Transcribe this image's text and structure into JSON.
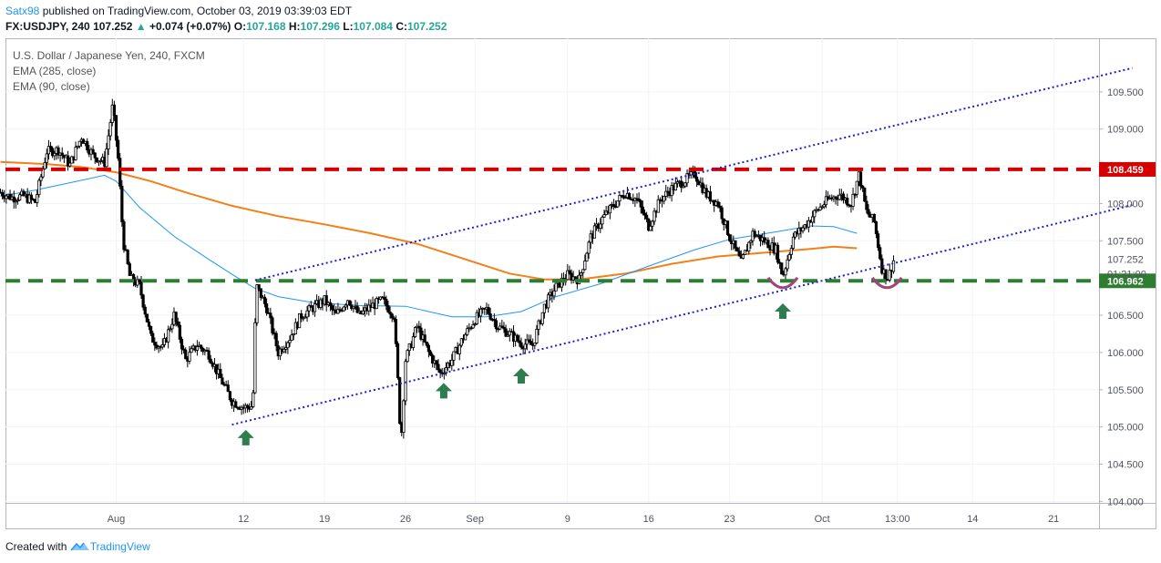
{
  "header": {
    "user": "Satx98",
    "published": "published on TradingView.com, October 03, 2019 03:39:03 EDT",
    "symbol": "FX:USDJPY, 240",
    "last": "107.252",
    "arrow": "▲",
    "change": "+0.074 (+0.07%)",
    "o_label": "O:",
    "o_value": "107.168",
    "h_label": "H:",
    "h_value": "107.296",
    "l_label": "L:",
    "l_value": "107.084",
    "c_label": "C:",
    "c_value": "107.252"
  },
  "legend": {
    "title": "U.S. Dollar / Japanese Yen, 240, FXCM",
    "ema1": "EMA (285, close)",
    "ema2": "EMA (90, close)"
  },
  "footer": {
    "created": "Created with",
    "brand": "TradingView"
  },
  "colors": {
    "resistance": "#d50000",
    "support": "#2e7d32",
    "channel": "#1c21c9",
    "ema285": "#f57f17",
    "ema90": "#2196f3",
    "arrow": "#2e7d4f",
    "smile": "#a0457a",
    "candle": "#000000"
  },
  "chart_data": {
    "type": "candlestick",
    "symbol": "USDJPY",
    "interval": "240",
    "ylim": [
      103.98,
      110.22
    ],
    "y_ticks": [
      "104.000",
      "104.500",
      "105.000",
      "105.500",
      "106.000",
      "106.500",
      "107.000",
      "107.500",
      "108.000",
      "108.500",
      "109.000",
      "109.500"
    ],
    "x_ticks": [
      {
        "label": "Aug",
        "t": 0
      },
      {
        "label": "12",
        "t": 11
      },
      {
        "label": "19",
        "t": 18
      },
      {
        "label": "26",
        "t": 25
      },
      {
        "label": "Sep",
        "t": 31
      },
      {
        "label": "9",
        "t": 39
      },
      {
        "label": "16",
        "t": 46
      },
      {
        "label": "23",
        "t": 53
      },
      {
        "label": "Oct",
        "t": 61
      },
      {
        "label": "13:00",
        "t": 67.5
      },
      {
        "label": "14",
        "t": 74
      },
      {
        "label": "21",
        "t": 81
      }
    ],
    "x_range_days": [
      -10,
      87.8
    ],
    "price_tags": {
      "resistance": "108.459",
      "last": "107.252",
      "countdown": "01:21:00",
      "support": "106.962"
    },
    "levels": {
      "resistance": 108.459,
      "support": 106.962
    },
    "channel_lower": [
      [
        10,
        105.03
      ],
      [
        87.8,
        107.98
      ]
    ],
    "channel_upper": [
      [
        12,
        106.97
      ],
      [
        87.8,
        109.82
      ]
    ],
    "arrows": [
      [
        11.2,
        104.85
      ],
      [
        28.3,
        105.48
      ],
      [
        35,
        105.68
      ],
      [
        57.6,
        106.55
      ]
    ],
    "smiles": [
      [
        57.6,
        106.98
      ],
      [
        66.6,
        106.98
      ]
    ],
    "ema285": [
      [
        -10,
        108.56
      ],
      [
        -6,
        108.53
      ],
      [
        -3,
        108.49
      ],
      [
        0,
        108.42
      ],
      [
        3,
        108.3
      ],
      [
        6,
        108.15
      ],
      [
        10,
        107.97
      ],
      [
        14,
        107.83
      ],
      [
        18,
        107.72
      ],
      [
        22,
        107.6
      ],
      [
        26,
        107.46
      ],
      [
        30,
        107.26
      ],
      [
        34,
        107.06
      ],
      [
        37,
        106.98
      ],
      [
        40,
        106.98
      ],
      [
        44,
        107.06
      ],
      [
        48,
        107.19
      ],
      [
        52,
        107.29
      ],
      [
        56,
        107.34
      ],
      [
        60,
        107.39
      ],
      [
        62,
        107.42
      ],
      [
        64,
        107.4
      ]
    ],
    "ema90": [
      [
        -10,
        108.1
      ],
      [
        -7,
        108.18
      ],
      [
        -4,
        108.28
      ],
      [
        -1,
        108.38
      ],
      [
        0,
        108.3
      ],
      [
        2,
        107.95
      ],
      [
        5,
        107.56
      ],
      [
        8,
        107.25
      ],
      [
        10,
        107.05
      ],
      [
        12,
        106.86
      ],
      [
        14,
        106.75
      ],
      [
        17,
        106.67
      ],
      [
        21,
        106.63
      ],
      [
        25,
        106.62
      ],
      [
        27,
        106.55
      ],
      [
        29,
        106.48
      ],
      [
        32,
        106.48
      ],
      [
        35,
        106.55
      ],
      [
        38,
        106.75
      ],
      [
        42,
        106.93
      ],
      [
        46,
        107.16
      ],
      [
        50,
        107.38
      ],
      [
        53,
        107.52
      ],
      [
        57,
        107.62
      ],
      [
        60,
        107.7
      ],
      [
        62,
        107.69
      ],
      [
        64,
        107.6
      ]
    ],
    "price_path": [
      [
        -10,
        108.15
      ],
      [
        -9,
        108.08
      ],
      [
        -8,
        108.1
      ],
      [
        -7,
        108.02
      ],
      [
        -6,
        108.7
      ],
      [
        -5,
        108.72
      ],
      [
        -4,
        108.52
      ],
      [
        -3,
        108.9
      ],
      [
        -2,
        108.65
      ],
      [
        -1,
        108.55
      ],
      [
        -0.3,
        109.32
      ],
      [
        0.2,
        108.55
      ],
      [
        0.6,
        107.5
      ],
      [
        1.2,
        107.0
      ],
      [
        2,
        106.9
      ],
      [
        3,
        106.2
      ],
      [
        4,
        106.05
      ],
      [
        5,
        106.5
      ],
      [
        6,
        105.9
      ],
      [
        7,
        106.1
      ],
      [
        8,
        105.98
      ],
      [
        9,
        105.65
      ],
      [
        10,
        105.35
      ],
      [
        11,
        105.26
      ],
      [
        11.8,
        105.28
      ],
      [
        12.1,
        106.9
      ],
      [
        13,
        106.6
      ],
      [
        14,
        106.0
      ],
      [
        15,
        106.2
      ],
      [
        16,
        106.5
      ],
      [
        17,
        106.6
      ],
      [
        18,
        106.7
      ],
      [
        19,
        106.5
      ],
      [
        20,
        106.72
      ],
      [
        21,
        106.5
      ],
      [
        22,
        106.62
      ],
      [
        23,
        106.7
      ],
      [
        24,
        106.5
      ],
      [
        24.4,
        105.45
      ],
      [
        24.6,
        104.75
      ],
      [
        25,
        105.9
      ],
      [
        26,
        106.35
      ],
      [
        27,
        106.0
      ],
      [
        28,
        105.72
      ],
      [
        29,
        105.9
      ],
      [
        30,
        106.2
      ],
      [
        31,
        106.45
      ],
      [
        32,
        106.58
      ],
      [
        33,
        106.35
      ],
      [
        34,
        106.25
      ],
      [
        35,
        106.12
      ],
      [
        36,
        106.1
      ],
      [
        37,
        106.62
      ],
      [
        38,
        106.88
      ],
      [
        39,
        107.04
      ],
      [
        40,
        106.98
      ],
      [
        41,
        107.55
      ],
      [
        42,
        107.8
      ],
      [
        43,
        107.98
      ],
      [
        44,
        108.15
      ],
      [
        45,
        108.05
      ],
      [
        46,
        107.7
      ],
      [
        47,
        108.05
      ],
      [
        48,
        108.2
      ],
      [
        49,
        108.3
      ],
      [
        50,
        108.4
      ],
      [
        51,
        108.12
      ],
      [
        52,
        108.0
      ],
      [
        53,
        107.55
      ],
      [
        54,
        107.2
      ],
      [
        55,
        107.6
      ],
      [
        56,
        107.5
      ],
      [
        57,
        107.38
      ],
      [
        57.6,
        107.02
      ],
      [
        58.5,
        107.55
      ],
      [
        59.5,
        107.7
      ],
      [
        60.5,
        107.9
      ],
      [
        61.5,
        108.05
      ],
      [
        62.5,
        108.12
      ],
      [
        63.5,
        108.0
      ],
      [
        64.2,
        108.4
      ],
      [
        64.8,
        107.9
      ],
      [
        65.5,
        107.75
      ],
      [
        66.2,
        107.1
      ],
      [
        66.7,
        107.0
      ],
      [
        67.2,
        107.252
      ]
    ]
  }
}
